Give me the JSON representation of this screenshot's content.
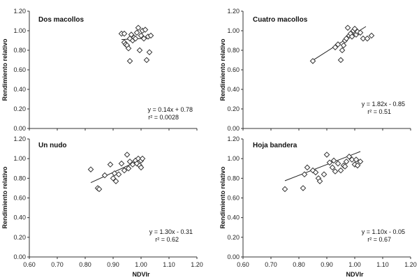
{
  "chart_data": [
    {
      "type": "scatter",
      "title": "Dos macollos",
      "xlabel": "",
      "ylabel": "Rendimiento relativo",
      "xlim": [
        0.6,
        1.2
      ],
      "ylim": [
        0.0,
        1.2
      ],
      "xticks": [
        "0.60",
        "0.70",
        "0.80",
        "0.90",
        "1.00",
        "1.10",
        "1.20"
      ],
      "yticks": [
        "0.00",
        "0.20",
        "0.40",
        "0.60",
        "0.80",
        "1.00",
        "1.20"
      ],
      "show_xticks": false,
      "points": [
        [
          0.93,
          0.97
        ],
        [
          0.94,
          0.97
        ],
        [
          0.94,
          0.88
        ],
        [
          0.945,
          0.86
        ],
        [
          0.95,
          0.85
        ],
        [
          0.955,
          0.82
        ],
        [
          0.96,
          0.69
        ],
        [
          0.96,
          0.92
        ],
        [
          0.965,
          0.96
        ],
        [
          0.97,
          0.9
        ],
        [
          0.975,
          0.93
        ],
        [
          0.98,
          0.92
        ],
        [
          0.985,
          0.98
        ],
        [
          0.99,
          1.03
        ],
        [
          0.995,
          0.8
        ],
        [
          1.0,
          0.95
        ],
        [
          1.005,
          1.0
        ],
        [
          1.01,
          0.92
        ],
        [
          1.015,
          1.01
        ],
        [
          1.02,
          0.7
        ],
        [
          1.025,
          0.94
        ],
        [
          1.03,
          0.78
        ],
        [
          1.035,
          0.95
        ]
      ],
      "trendline": {
        "slope": 0.14,
        "intercept": 0.78,
        "x_range": [
          0.93,
          1.03
        ]
      },
      "equation": "y = 0.14x + 0.78",
      "r2": "r² = 0.0028"
    },
    {
      "type": "scatter",
      "title": "Cuatro macollos",
      "xlabel": "",
      "ylabel": "Rendimiento relativo",
      "xlim": [
        0.6,
        1.2
      ],
      "ylim": [
        0.0,
        1.2
      ],
      "xticks": [
        "0.60",
        "0.70",
        "0.80",
        "0.90",
        "1.00",
        "1.10",
        "1.20"
      ],
      "yticks": [
        "0.00",
        "0.20",
        "0.40",
        "0.60",
        "0.80",
        "1.00",
        "1.20"
      ],
      "show_xticks": false,
      "points": [
        [
          0.85,
          0.69
        ],
        [
          0.93,
          0.83
        ],
        [
          0.94,
          0.86
        ],
        [
          0.95,
          0.7
        ],
        [
          0.955,
          0.8
        ],
        [
          0.96,
          0.85
        ],
        [
          0.965,
          0.9
        ],
        [
          0.97,
          0.92
        ],
        [
          0.975,
          1.03
        ],
        [
          0.98,
          0.95
        ],
        [
          0.985,
          0.97
        ],
        [
          0.99,
          0.94
        ],
        [
          0.995,
          1.0
        ],
        [
          1.0,
          1.02
        ],
        [
          1.005,
          0.96
        ],
        [
          1.01,
          0.99
        ],
        [
          1.02,
          0.98
        ],
        [
          1.03,
          0.92
        ],
        [
          1.045,
          0.92
        ],
        [
          1.06,
          0.95
        ]
      ],
      "trendline": {
        "slope": 1.82,
        "intercept": -0.85,
        "x_range": [
          0.85,
          1.04
        ]
      },
      "equation": "y = 1.82x - 0.85",
      "r2": "r² = 0.51"
    },
    {
      "type": "scatter",
      "title": "Un nudo",
      "xlabel": "NDVIr",
      "ylabel": "Rendimiento relativo",
      "xlim": [
        0.6,
        1.2
      ],
      "ylim": [
        0.0,
        1.2
      ],
      "xticks": [
        "0.60",
        "0.70",
        "0.80",
        "0.90",
        "1.00",
        "1.10",
        "1.20"
      ],
      "yticks": [
        "0.00",
        "0.20",
        "0.40",
        "0.60",
        "0.80",
        "1.00",
        "1.20"
      ],
      "show_xticks": true,
      "points": [
        [
          0.82,
          0.89
        ],
        [
          0.845,
          0.7
        ],
        [
          0.85,
          0.69
        ],
        [
          0.87,
          0.83
        ],
        [
          0.89,
          0.94
        ],
        [
          0.9,
          0.8
        ],
        [
          0.905,
          0.85
        ],
        [
          0.91,
          0.77
        ],
        [
          0.92,
          0.84
        ],
        [
          0.93,
          0.95
        ],
        [
          0.94,
          0.88
        ],
        [
          0.95,
          1.04
        ],
        [
          0.955,
          0.9
        ],
        [
          0.96,
          0.97
        ],
        [
          0.97,
          0.94
        ],
        [
          0.98,
          0.98
        ],
        [
          0.985,
          0.95
        ],
        [
          0.99,
          1.0
        ],
        [
          0.995,
          0.93
        ],
        [
          1.0,
          0.98
        ],
        [
          1.005,
          1.0
        ],
        [
          1.0,
          0.91
        ]
      ],
      "trendline": {
        "slope": 1.3,
        "intercept": -0.31,
        "x_range": [
          0.82,
          1.01
        ]
      },
      "equation": "y = 1.30x - 0.31",
      "r2": "r² = 0.62"
    },
    {
      "type": "scatter",
      "title": "Hoja bandera",
      "xlabel": "NDVIr",
      "ylabel": "Rendimiento relativo",
      "xlim": [
        0.6,
        1.2
      ],
      "ylim": [
        0.0,
        1.2
      ],
      "xticks": [
        "0.60",
        "0.70",
        "0.80",
        "0.90",
        "1.00",
        "1.10",
        "1.20"
      ],
      "yticks": [
        "0.00",
        "0.20",
        "0.40",
        "0.60",
        "0.80",
        "1.00",
        "1.20"
      ],
      "show_xticks": true,
      "points": [
        [
          0.75,
          0.69
        ],
        [
          0.815,
          0.7
        ],
        [
          0.82,
          0.84
        ],
        [
          0.83,
          0.91
        ],
        [
          0.85,
          0.88
        ],
        [
          0.86,
          0.86
        ],
        [
          0.87,
          0.8
        ],
        [
          0.875,
          0.77
        ],
        [
          0.89,
          0.84
        ],
        [
          0.9,
          1.04
        ],
        [
          0.91,
          0.96
        ],
        [
          0.92,
          0.91
        ],
        [
          0.925,
          0.98
        ],
        [
          0.93,
          0.87
        ],
        [
          0.94,
          0.95
        ],
        [
          0.95,
          0.88
        ],
        [
          0.96,
          0.93
        ],
        [
          0.965,
          0.92
        ],
        [
          0.97,
          0.97
        ],
        [
          0.98,
          1.02
        ],
        [
          0.99,
          0.99
        ],
        [
          1.0,
          0.94
        ],
        [
          1.005,
          0.99
        ],
        [
          1.01,
          0.93
        ],
        [
          1.02,
          0.97
        ]
      ],
      "trendline": {
        "slope": 1.1,
        "intercept": -0.05,
        "x_range": [
          0.75,
          1.02
        ]
      },
      "equation": "y = 1.10x - 0.05",
      "r2": "r² = 0.67"
    }
  ]
}
